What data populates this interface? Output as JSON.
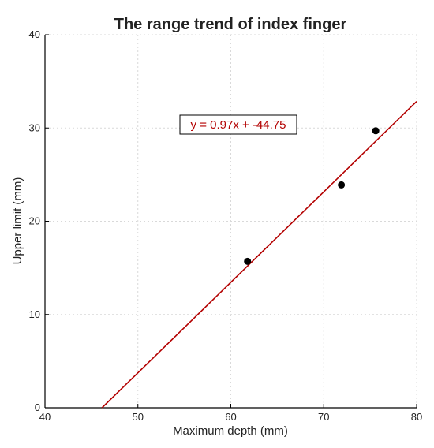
{
  "chart_data": {
    "type": "scatter",
    "title": "The range trend of index finger",
    "xlabel": "Maximum depth (mm)",
    "ylabel": "Upper limit (mm)",
    "xlim": [
      40,
      80
    ],
    "ylim": [
      0,
      40
    ],
    "xticks": [
      "40",
      "50",
      "60",
      "70",
      "80"
    ],
    "yticks": [
      "0",
      "10",
      "20",
      "30",
      "40"
    ],
    "grid": true,
    "points": [
      {
        "x": 61.8,
        "y": 15.7
      },
      {
        "x": 71.9,
        "y": 23.9
      },
      {
        "x": 75.6,
        "y": 29.7
      }
    ],
    "trendline": {
      "slope": 0.97,
      "intercept": -44.75,
      "label": "y = 0.97x + -44.75",
      "color": "#b30000"
    },
    "point_color": "#000000"
  }
}
